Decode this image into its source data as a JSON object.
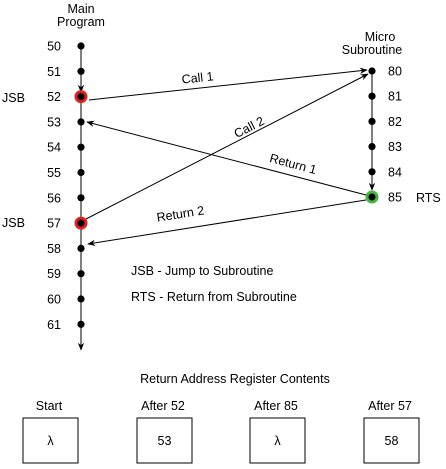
{
  "main_program": {
    "title_line1": "Main",
    "title_line2": "Program",
    "addresses": [
      "50",
      "51",
      "52",
      "53",
      "54",
      "55",
      "56",
      "57",
      "58",
      "59",
      "60",
      "61"
    ]
  },
  "micro_subroutine": {
    "title_line1": "Micro",
    "title_line2": "Subroutine",
    "addresses": [
      "80",
      "81",
      "82",
      "83",
      "84",
      "85"
    ]
  },
  "instructions": {
    "jsb_first": "JSB",
    "jsb_second": "JSB",
    "rts": "RTS"
  },
  "arrows": {
    "call1": "Call 1",
    "call2": "Call 2",
    "return1": "Return 1",
    "return2": "Return 2"
  },
  "legend": {
    "jsb": "JSB - Jump to Subroutine",
    "rts": "RTS - Return from Subroutine"
  },
  "register": {
    "title": "Return Address Register Contents",
    "states": [
      {
        "label": "Start",
        "value": "λ"
      },
      {
        "label": "After 52",
        "value": "53"
      },
      {
        "label": "After 85",
        "value": "λ"
      },
      {
        "label": "After 57",
        "value": "58"
      }
    ]
  },
  "colors": {
    "jsb_marker": "#e0201a",
    "rts_marker": "#3fb83f",
    "line": "#000000"
  }
}
